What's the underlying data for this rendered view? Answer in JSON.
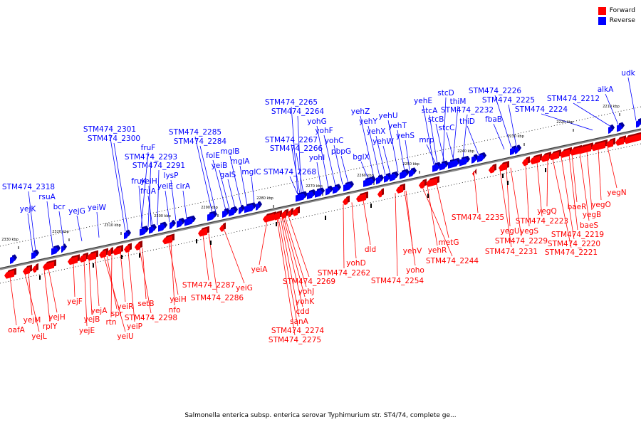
{
  "caption": "Salmonella enterica subsp. enterica serovar Typhimurium str. ST4/74, complete ge...",
  "legend": {
    "forward_label": "Forward",
    "reverse_label": "Reverse",
    "forward_color": "#ff0000",
    "reverse_color": "#0000ff"
  },
  "ticks": [
    "2330 kbp",
    "2320 kbp",
    "2310 kbp",
    "2300 kbp",
    "2290 kbp",
    "2280 kbp",
    "2270 kbp",
    "2260 kbp",
    "2250 kbp",
    "2240 kbp",
    "2230 kbp",
    "2220 kbp",
    "2210 kbp"
  ],
  "reverse_genes": [
    "udk",
    "alkA",
    "STM474_2212",
    "STM474_2224",
    "STM474_2225",
    "STM474_2226",
    "thiD",
    "fbaB",
    "STM474_2232",
    "thiM",
    "stcD",
    "stcC",
    "stcB",
    "stcA",
    "yehE",
    "mrp",
    "yehS",
    "yehT",
    "yehU",
    "yehW",
    "yehX",
    "yehY",
    "yehZ",
    "bglX",
    "pbpG",
    "yohC",
    "yohF",
    "yohG",
    "yohI",
    "STM474_2265",
    "STM474_2264",
    "STM474_2266",
    "STM474_2267",
    "STM474_2268",
    "mglC",
    "mglA",
    "mglB",
    "galS",
    "yeiB",
    "folE",
    "STM474_2284",
    "STM474_2285",
    "cirA",
    "lysP",
    "yeiE",
    "yeiH",
    "fruA",
    "fruK",
    "STM474_2291",
    "STM474_2293",
    "fruF",
    "STM474_2300",
    "STM474_2301",
    "yeiW",
    "yejG",
    "bcr",
    "rsuA",
    "yejK",
    "STM474_2318"
  ],
  "forward_genes": [
    "yegN",
    "yegO",
    "yegB",
    "baeR",
    "baeS",
    "STM474_2219",
    "STM474_2220",
    "STM474_2221",
    "yegQ",
    "STM474_2223",
    "yegS",
    "yegU",
    "STM474_2229",
    "STM474_2231",
    "STM474_2235",
    "metG",
    "yehR",
    "STM474_2244",
    "yehV",
    "yoho",
    "STM474_2254",
    "dld",
    "yohD",
    "STM474_2262",
    "STM474_2269",
    "yohJ",
    "yohK",
    "cdd",
    "sanA",
    "STM474_2274",
    "STM474_2275",
    "yeiA",
    "yeiG",
    "STM474_2286",
    "STM474_2287",
    "nfo",
    "setB",
    "STM474_2298",
    "yeiH",
    "yeiP",
    "yeiR",
    "rtn",
    "spr",
    "yeiU",
    "yejA",
    "yejB",
    "yejE",
    "yejF",
    "yejH",
    "rplY",
    "yejM",
    "yejL",
    "oafA"
  ]
}
